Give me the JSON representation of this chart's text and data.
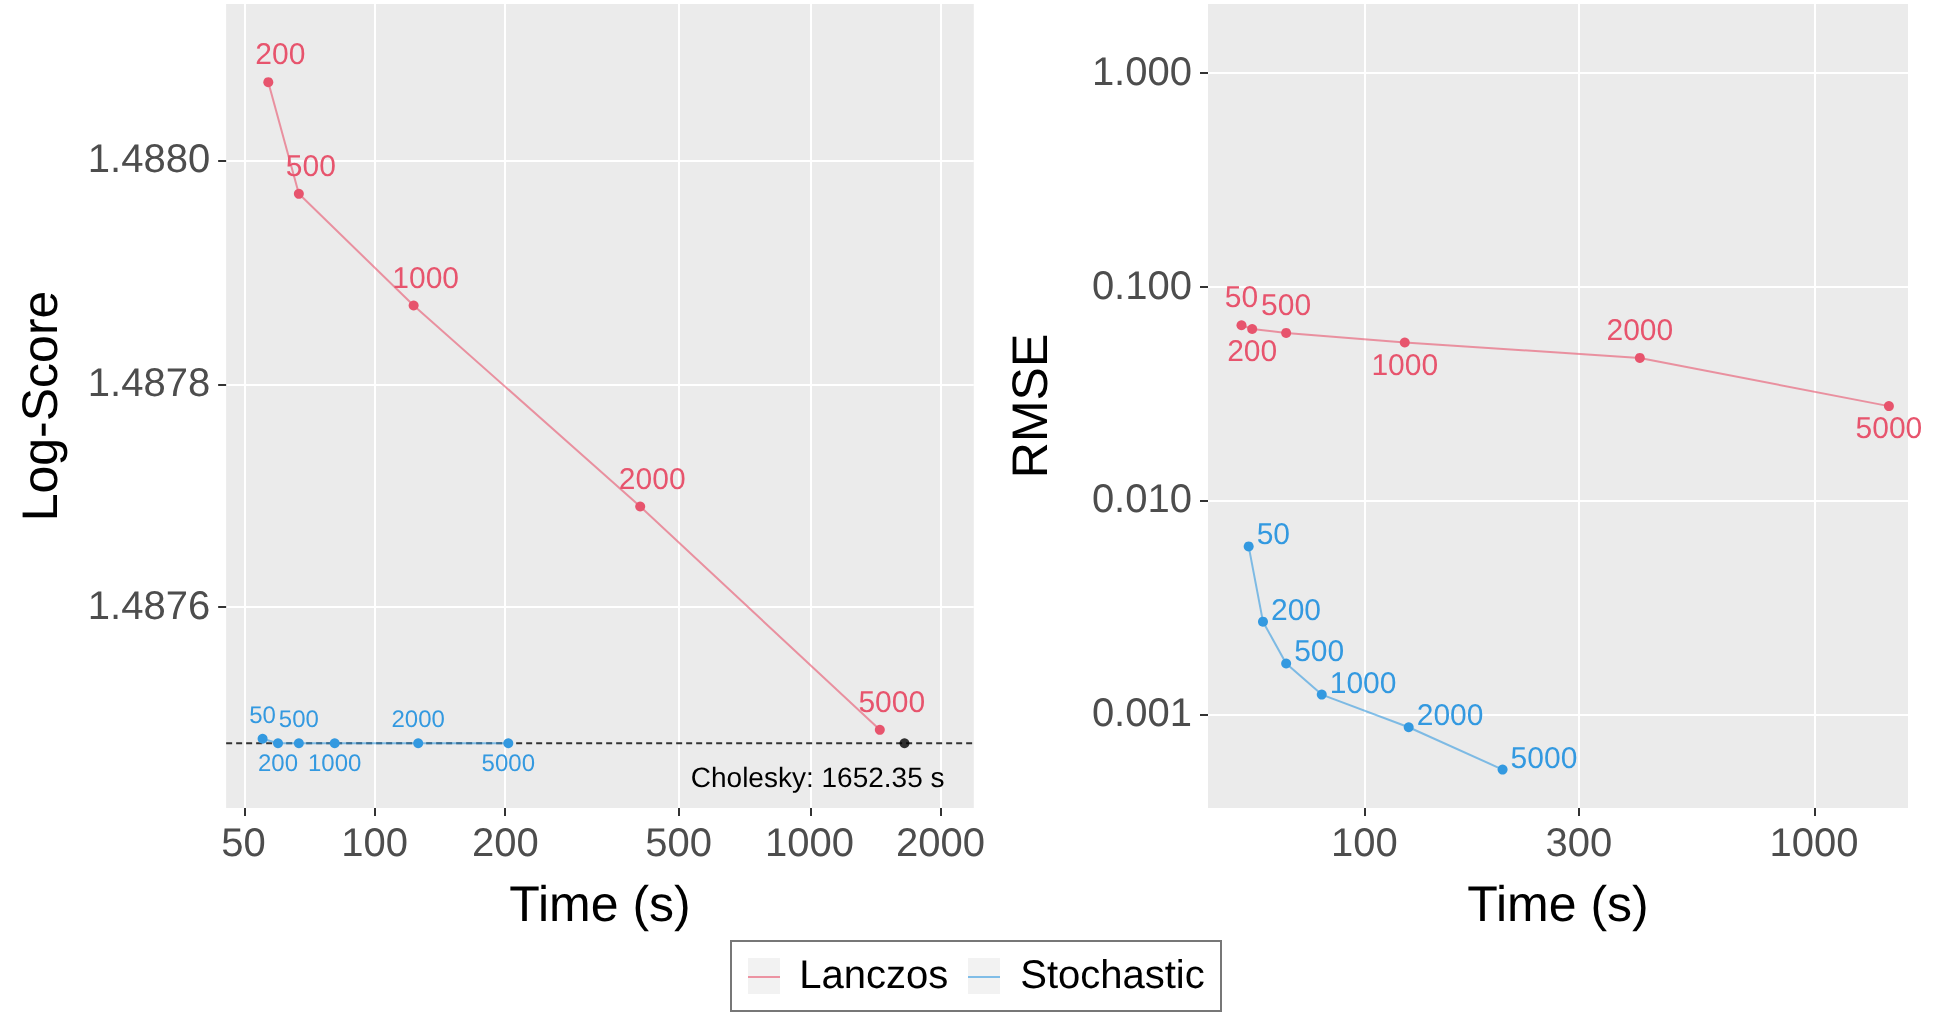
{
  "chart_data": [
    {
      "type": "line",
      "xlabel": "Time (s)",
      "ylabel": "Log-Score",
      "log": "x",
      "grid": true,
      "legend": "bottom",
      "marker": "circle",
      "line_style": "solid",
      "xlim": [
        45.6,
        2384
      ],
      "xticks": [
        50,
        100,
        200,
        500,
        1000,
        2000
      ],
      "ylim": [
        1.48742,
        1.48814
      ],
      "yticks": [
        {
          "value": 1.4876,
          "label": "1.4876"
        },
        {
          "value": 1.4878,
          "label": "1.4878"
        },
        {
          "value": 1.488,
          "label": "1.4880"
        }
      ],
      "series": [
        {
          "name": "Lanczos",
          "color": "#e7546d",
          "x": [
            57,
            67,
            123,
            408,
            1450
          ],
          "values": [
            1.48807,
            1.48797,
            1.48787,
            1.48769,
            1.48749
          ]
        },
        {
          "name": "Stochastic",
          "color": "#3399e0",
          "x": [
            55.3,
            60,
            67,
            81,
            126,
            203
          ],
          "values": [
            1.487482,
            1.487478,
            1.487478,
            1.487478,
            1.487478,
            1.487478
          ]
        },
        {
          "type": "scatter",
          "color": "#000000",
          "x": [
            1652.35
          ],
          "values": [
            1.487478
          ]
        }
      ],
      "ref_lines": [
        {
          "axis": "y",
          "value": 1.487478,
          "color": "#333333",
          "line_style": "dashed"
        }
      ],
      "annotations": [
        {
          "text": "200",
          "x": 57,
          "y": 1.48807
        },
        {
          "text": "500",
          "x": 67,
          "y": 1.48797
        },
        {
          "text": "1000",
          "x": 123,
          "y": 1.48787
        },
        {
          "text": "2000",
          "x": 408,
          "y": 1.48769
        },
        {
          "text": "5000",
          "x": 1450,
          "y": 1.48749
        },
        {
          "text": "50",
          "x": 55.3,
          "y": 1.487482
        },
        {
          "text": "200",
          "x": 60,
          "y": 1.487478
        },
        {
          "text": "500",
          "x": 67,
          "y": 1.487478
        },
        {
          "text": "1000",
          "x": 81,
          "y": 1.487478
        },
        {
          "text": "2000",
          "x": 126,
          "y": 1.487478
        },
        {
          "text": "5000",
          "x": 203,
          "y": 1.487478
        },
        {
          "text": "Cholesky: 1652.35 s",
          "x": 1652.35,
          "y": 1.487478
        }
      ]
    },
    {
      "type": "line",
      "xlabel": "Time (s)",
      "ylabel": "RMSE",
      "log": "xy",
      "grid": true,
      "marker": "circle",
      "line_style": "solid",
      "xlim": [
        44.9,
        1619
      ],
      "xticks": [
        100,
        300,
        1000
      ],
      "ylim": [
        0.000362,
        2.11
      ],
      "yticks": [
        0.001,
        {
          "value": 0.01,
          "label": "0.010"
        },
        {
          "value": 0.1,
          "label": "0.100"
        },
        {
          "value": 1,
          "label": "1.000"
        }
      ],
      "series": [
        {
          "name": "Lanczos",
          "color": "#e7546d",
          "x": [
            53.3,
            56.3,
            67,
            123,
            410,
            1468
          ],
          "values": [
            0.066,
            0.0634,
            0.0608,
            0.0548,
            0.0464,
            0.0276
          ]
        },
        {
          "name": "Stochastic",
          "color": "#3399e0",
          "x": [
            55.3,
            59.5,
            67,
            80.4,
            125.5,
            203
          ],
          "values": [
            0.00608,
            0.0027,
            0.00172,
            0.00123,
            0.000865,
            0.000548
          ]
        }
      ],
      "annotations": [
        {
          "text": "50",
          "x": 53.3,
          "y": 0.066
        },
        {
          "text": "200",
          "x": 56.3,
          "y": 0.0634
        },
        {
          "text": "500",
          "x": 67,
          "y": 0.0608
        },
        {
          "text": "1000",
          "x": 123,
          "y": 0.0548
        },
        {
          "text": "2000",
          "x": 410,
          "y": 0.0464
        },
        {
          "text": "5000",
          "x": 1468,
          "y": 0.0276
        },
        {
          "text": "50",
          "x": 55.3,
          "y": 0.00608
        },
        {
          "text": "200",
          "x": 59.5,
          "y": 0.0027
        },
        {
          "text": "500",
          "x": 67,
          "y": 0.00172
        },
        {
          "text": "1000",
          "x": 80.4,
          "y": 0.00123
        },
        {
          "text": "2000",
          "x": 125.5,
          "y": 0.000865
        },
        {
          "text": "5000",
          "x": 203,
          "y": 0.000548
        }
      ]
    }
  ]
}
